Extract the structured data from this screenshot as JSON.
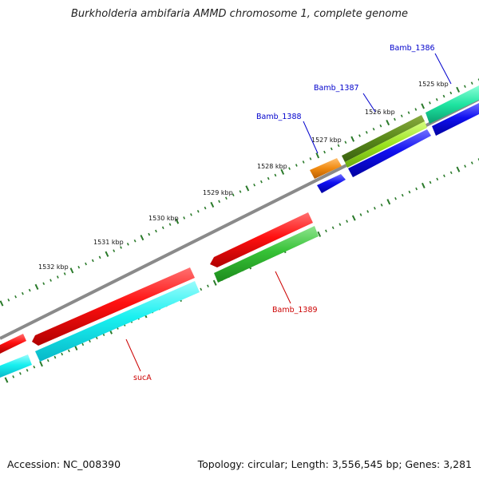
{
  "map_title": "Burkholderia ambifaria AMMD chromosome 1, complete genome",
  "footer": {
    "accession": "Accession: NC_008390",
    "summary": "Topology: circular; Length: 3,556,545 bp; Genes: 3,281"
  },
  "scale_labels": [
    "1525 kbp",
    "1526 kbp",
    "1527 kbp",
    "1528 kbp",
    "1529 kbp",
    "1530 kbp",
    "1531 kbp",
    "1532 kbp"
  ],
  "genes": [
    {
      "label": "Bamb_1386",
      "label_color": "#0000cc"
    },
    {
      "label": "Bamb_1387",
      "label_color": "#0000cc"
    },
    {
      "label": "Bamb_1388",
      "label_color": "#0000cc"
    },
    {
      "label": "Bamb_1389",
      "label_color": "#cc0000"
    },
    {
      "label": "sucA",
      "label_color": "#cc0000"
    }
  ],
  "colors": {
    "backbone": "#8a8a8a",
    "ticks": "#2a7a2a",
    "red": "#ff1010",
    "cyan": "#19f0f0",
    "green": "#36c236",
    "olive": "#5a8a1a",
    "lime": "#9be21e",
    "blue": "#1010f0",
    "orange": "#f08a10",
    "teal": "#1ee4a0",
    "mint": "#60f0c0"
  }
}
